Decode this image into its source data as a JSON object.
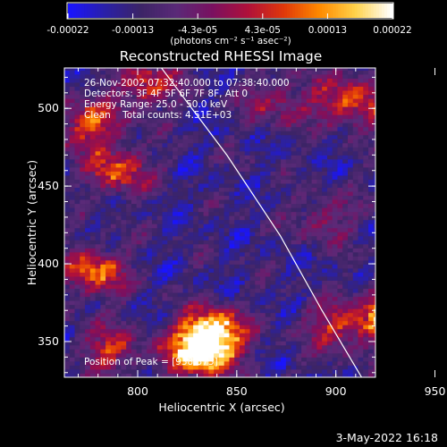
{
  "colorbar": {
    "tick_labels": [
      "-0.00022",
      "-0.00013",
      "-4.3e-05",
      "4.3e-05",
      "0.00013",
      "0.00022"
    ],
    "range": [
      -0.00022,
      0.00022
    ],
    "unit_label": "(photons cm⁻² s⁻¹ asec⁻²)",
    "colors": [
      "#1a14ff",
      "#2a20a8",
      "#3c2466",
      "#5a2a78",
      "#7a1060",
      "#b0103a",
      "#e0380a",
      "#ff8a00",
      "#ffd24a",
      "#ffffff"
    ]
  },
  "chart_data": {
    "type": "heatmap",
    "title": "Reconstructed RHESSI Image",
    "xlabel": "Heliocentric X (arcsec)",
    "ylabel": "Heliocentric Y (arcsec)",
    "xlim": [
      763,
      920
    ],
    "ylim": [
      327,
      526
    ],
    "x_ticks": [
      800,
      850,
      900,
      950
    ],
    "y_ticks": [
      350,
      400,
      450,
      500
    ],
    "info_lines": [
      "26-Nov-2002 07:32:40.000 to 07:38:40.000",
      "Detectors: 3F 4F 5F 6F 7F 8F, Att 0",
      "Energy Range: 25.0 - 50.0 keV",
      "Clean    Total counts: 4.51E+03"
    ],
    "peak_label": "Position of Peak = [938,373]",
    "limb_points": [
      [
        812,
        526
      ],
      [
        845,
        470
      ],
      [
        872,
        418
      ],
      [
        893,
        370
      ],
      [
        913,
        327
      ]
    ],
    "bright_sources": [
      {
        "x": 838,
        "y": 355,
        "amplitude": 1.0
      },
      {
        "x": 830,
        "y": 342,
        "amplitude": 0.8
      },
      {
        "x": 942,
        "y": 378,
        "amplitude": 1.0
      },
      {
        "x": 928,
        "y": 365,
        "amplitude": 0.75
      },
      {
        "x": 938,
        "y": 500,
        "amplitude": 0.85
      },
      {
        "x": 905,
        "y": 505,
        "amplitude": 0.55
      },
      {
        "x": 790,
        "y": 460,
        "amplitude": 0.55
      },
      {
        "x": 775,
        "y": 490,
        "amplitude": 0.55
      },
      {
        "x": 778,
        "y": 395,
        "amplitude": 0.6
      },
      {
        "x": 786,
        "y": 345,
        "amplitude": 0.45
      },
      {
        "x": 805,
        "y": 515,
        "amplitude": 0.5
      },
      {
        "x": 950,
        "y": 440,
        "amplitude": 0.45
      },
      {
        "x": 900,
        "y": 360,
        "amplitude": 0.45
      },
      {
        "x": 870,
        "y": 505,
        "amplitude": 0.35
      },
      {
        "x": 895,
        "y": 430,
        "amplitude": 0.3
      }
    ]
  },
  "footer": {
    "date": "3-May-2022 16:18"
  }
}
